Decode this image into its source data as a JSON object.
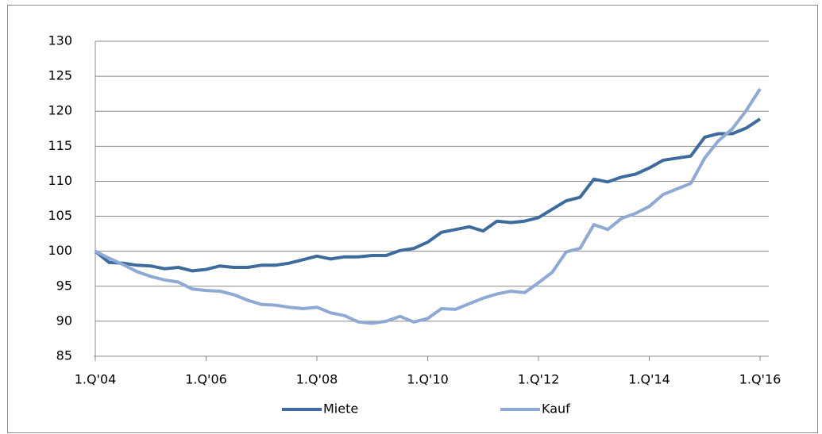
{
  "chart_data": {
    "type": "line",
    "categories": [
      "1.Q'04",
      null,
      null,
      null,
      null,
      null,
      null,
      null,
      "1.Q'06",
      null,
      null,
      null,
      null,
      null,
      null,
      null,
      "1.Q'08",
      null,
      null,
      null,
      null,
      null,
      null,
      null,
      "1.Q'10",
      null,
      null,
      null,
      null,
      null,
      null,
      null,
      "1.Q'12",
      null,
      null,
      null,
      null,
      null,
      null,
      null,
      "1.Q'14",
      null,
      null,
      null,
      null,
      null,
      null,
      null,
      "1.Q'16"
    ],
    "series": [
      {
        "name": "Miete",
        "color": "#3d6b9e",
        "values": [
          100,
          98.4,
          98.3,
          98.0,
          97.9,
          97.5,
          97.7,
          97.2,
          97.4,
          97.9,
          97.7,
          97.7,
          98.0,
          98.0,
          98.3,
          98.8,
          99.3,
          98.9,
          99.2,
          99.2,
          99.4,
          99.4,
          100.1,
          100.4,
          101.3,
          102.7,
          103.1,
          103.5,
          102.9,
          104.3,
          104.1,
          104.3,
          104.8,
          106.0,
          107.2,
          107.7,
          110.3,
          109.9,
          110.6,
          111.0,
          111.9,
          113.0,
          113.3,
          113.6,
          116.3,
          116.8,
          116.8,
          117.6,
          118.9
        ]
      },
      {
        "name": "Kauf",
        "color": "#8eaad4",
        "values": [
          100,
          99.0,
          98.1,
          97.1,
          96.4,
          95.9,
          95.6,
          94.6,
          94.4,
          94.3,
          93.8,
          93.0,
          92.4,
          92.3,
          92.0,
          91.8,
          92.0,
          91.2,
          90.8,
          89.9,
          89.7,
          90.0,
          90.7,
          89.9,
          90.4,
          91.8,
          91.7,
          92.5,
          93.3,
          93.9,
          94.3,
          94.1,
          95.5,
          97.0,
          99.9,
          100.4,
          103.8,
          103.1,
          104.7,
          105.4,
          106.4,
          108.1,
          108.9,
          109.7,
          113.3,
          115.8,
          117.5,
          120.1,
          123.2
        ]
      }
    ],
    "ylim": [
      85,
      130
    ],
    "yticks": [
      85,
      90,
      95,
      100,
      105,
      110,
      115,
      120,
      125,
      130
    ],
    "grid": true,
    "legend": "bottom"
  }
}
